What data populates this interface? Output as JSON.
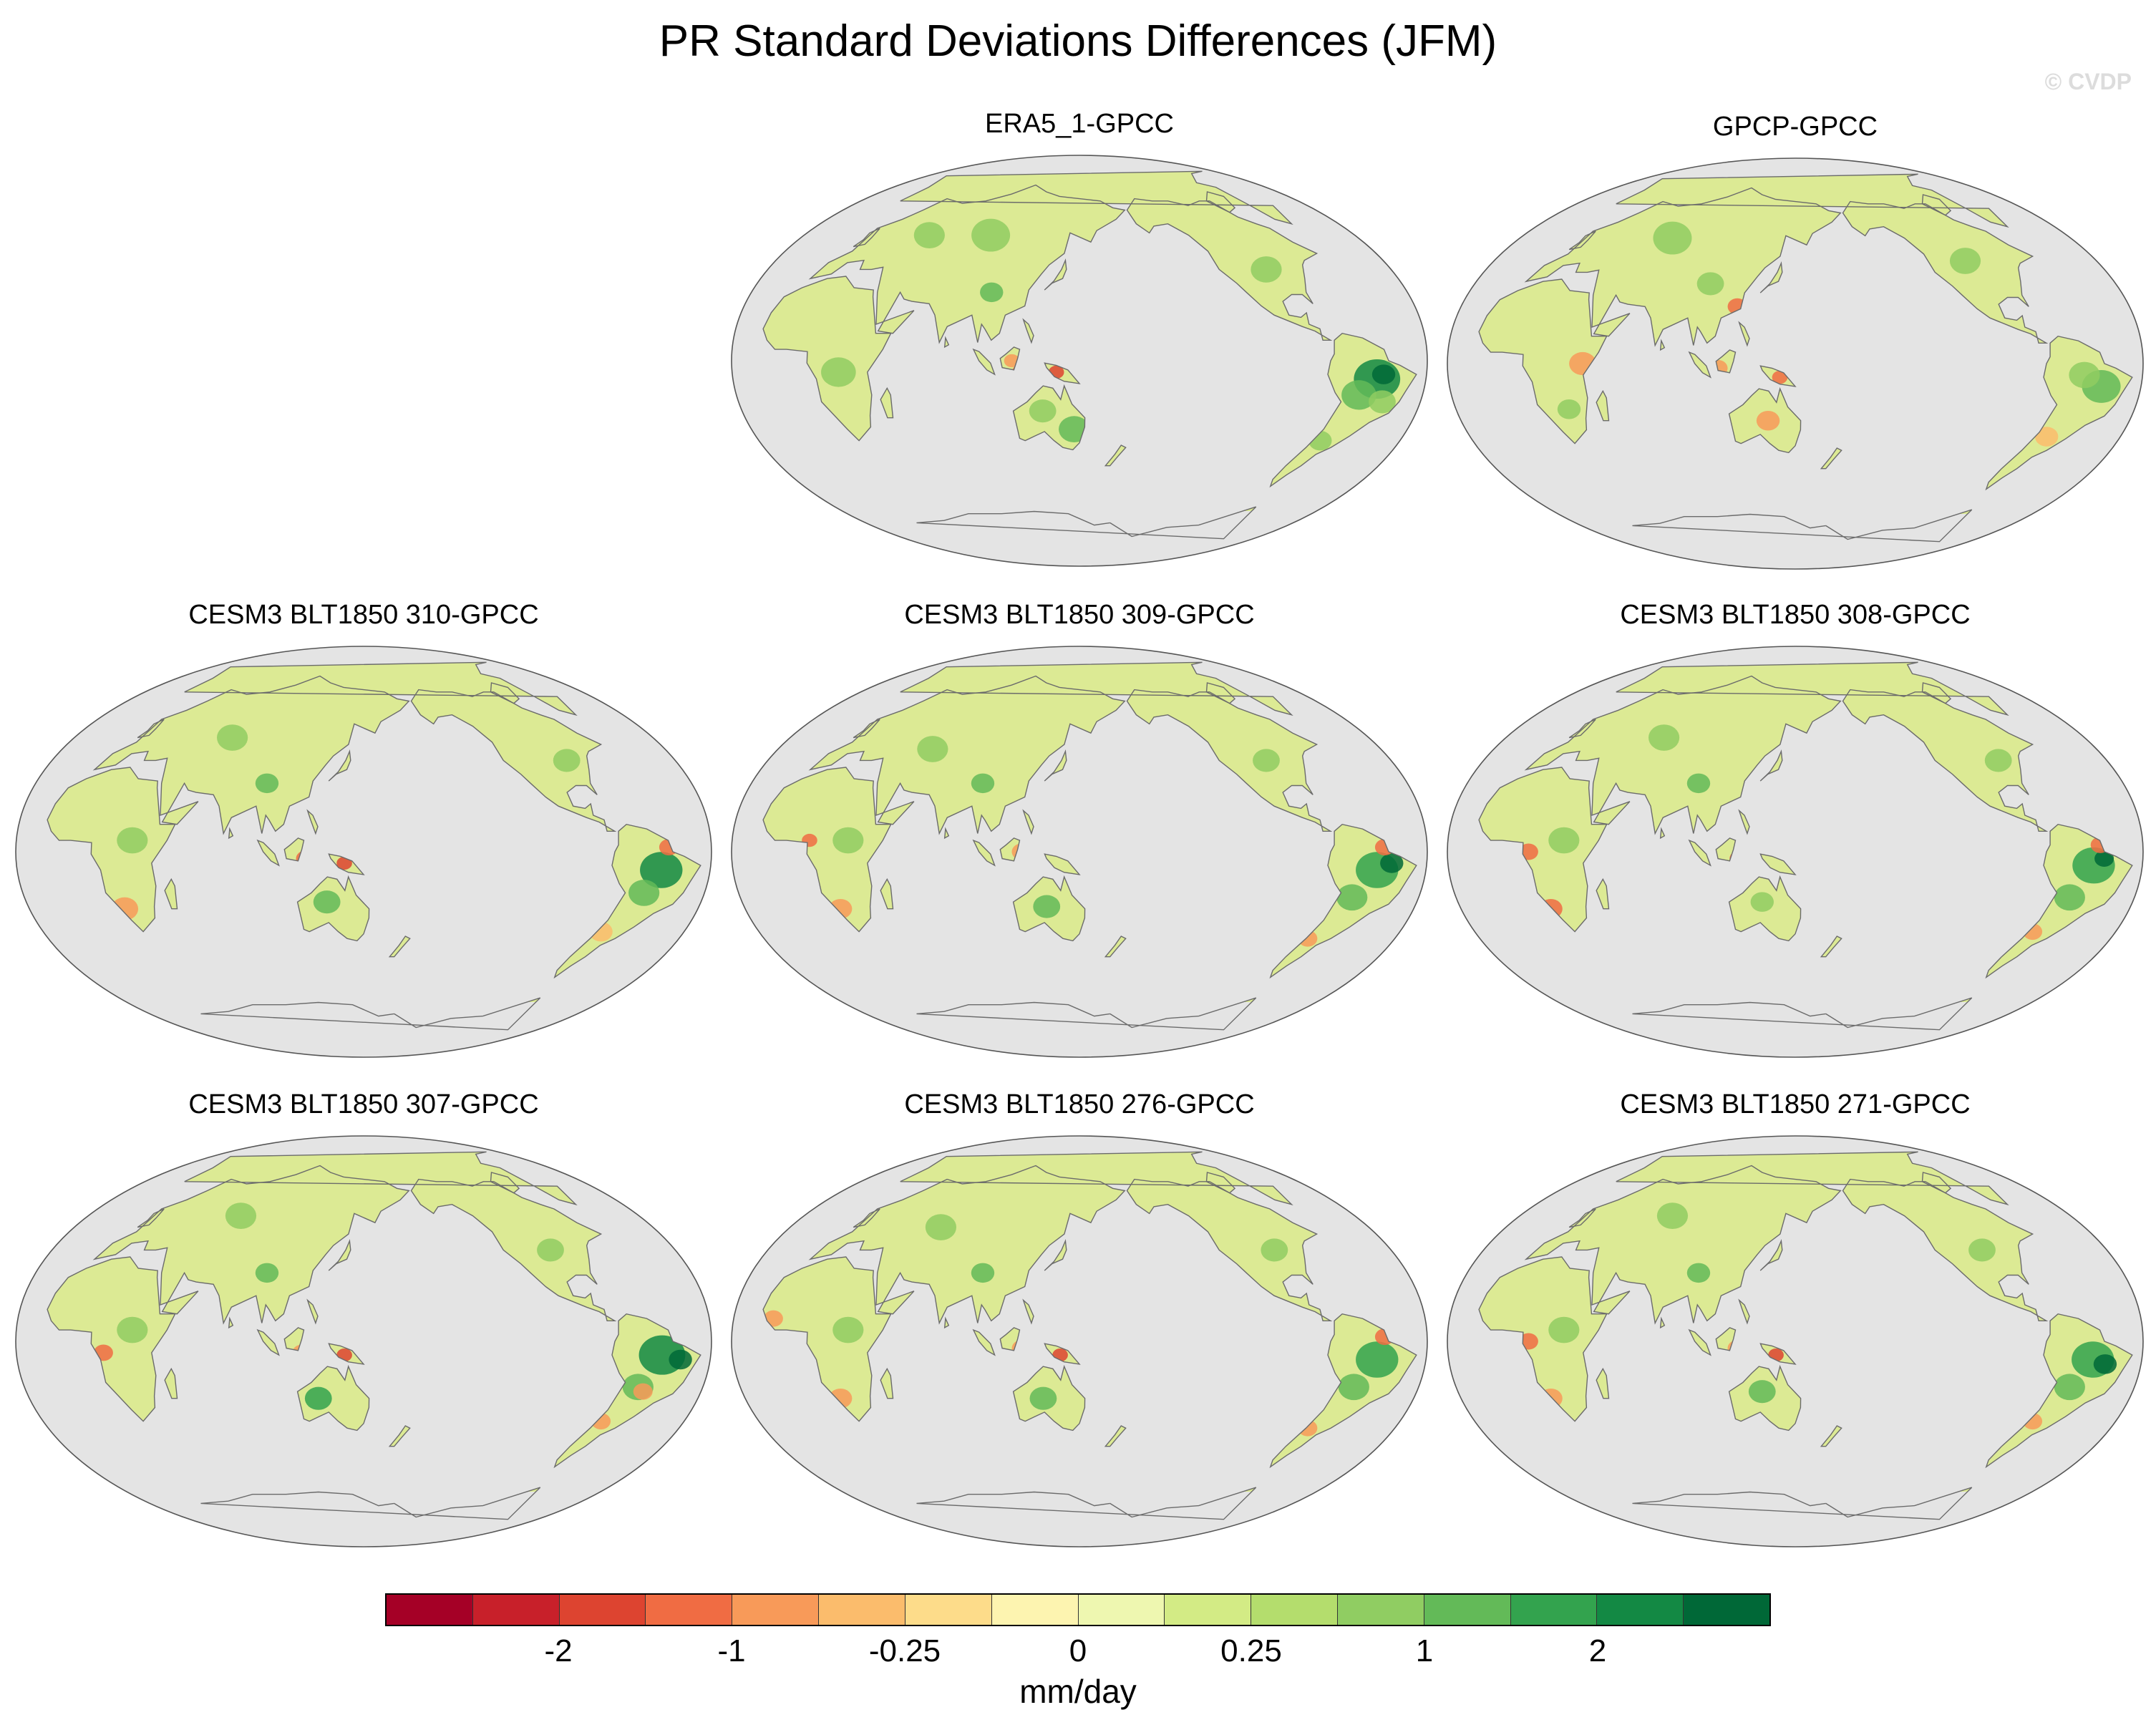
{
  "title": "PR Standard Deviations Differences (JFM)",
  "credit": "© CVDP",
  "colors": {
    "ocean": "#e4e4e4",
    "coast": "#6b6b6b",
    "base_land": "#dcea94"
  },
  "panels": [
    {
      "title": "ERA5_1-GPCC",
      "pattern": 0
    },
    {
      "title": "GPCP-GPCC",
      "pattern": 1
    },
    {
      "title": "CESM3 BLT1850 310-GPCC",
      "pattern": 2
    },
    {
      "title": "CESM3 BLT1850 309-GPCC",
      "pattern": 3
    },
    {
      "title": "CESM3 BLT1850 308-GPCC",
      "pattern": 4
    },
    {
      "title": "CESM3 BLT1850 307-GPCC",
      "pattern": 5
    },
    {
      "title": "CESM3 BLT1850 276-GPCC",
      "pattern": 6
    },
    {
      "title": "CESM3 BLT1850 271-GPCC",
      "pattern": 7
    }
  ],
  "colorbar": {
    "units": "mm/day",
    "colors": [
      "#a50026",
      "#c8202a",
      "#dd4430",
      "#f06c43",
      "#f89a59",
      "#fbbc6c",
      "#fddc8a",
      "#fdf4b0",
      "#eef7b0",
      "#d3eb85",
      "#b4dd6d",
      "#90cd62",
      "#63ba58",
      "#33a34e",
      "#138944",
      "#006837"
    ],
    "tick_labels": [
      {
        "label": "-2",
        "index": 2
      },
      {
        "label": "-1",
        "index": 4
      },
      {
        "label": "-0.25",
        "index": 6
      },
      {
        "label": "0",
        "index": 8
      },
      {
        "label": "0.25",
        "index": 10
      },
      {
        "label": "1",
        "index": 12
      },
      {
        "label": "2",
        "index": 14
      }
    ]
  }
}
